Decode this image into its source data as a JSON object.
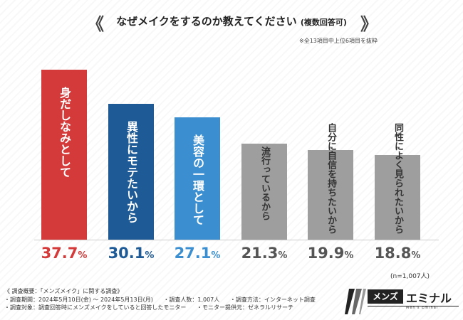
{
  "header": {
    "title": "なぜメイクをするのか教えてください",
    "title_paren": "(複数回答可)",
    "bracket_left": "《",
    "bracket_right": "》",
    "note": "※全13項目中上位6項目を抜粋"
  },
  "chart_data": {
    "type": "bar",
    "title": "なぜメイクをするのか教えてください(複数回答可)",
    "categories": [
      "身だしなみとして",
      "異性にモテたいから",
      "美容の一環として",
      "流行っているから",
      "自分に自信を持ちたいから",
      "同性によく見られたいから"
    ],
    "values": [
      37.7,
      30.1,
      27.1,
      21.3,
      19.9,
      18.8
    ],
    "value_labels": [
      {
        "num": "37.7",
        "pct": "%"
      },
      {
        "num": "30.1",
        "pct": "%"
      },
      {
        "num": "27.1",
        "pct": "%"
      },
      {
        "num": "21.3",
        "pct": "%"
      },
      {
        "num": "19.9",
        "pct": "%"
      },
      {
        "num": "18.8",
        "pct": "%"
      }
    ],
    "colors": [
      "#d43a3a",
      "#1d5a96",
      "#3b8fd0",
      "#9e9e9e",
      "#9e9e9e",
      "#9e9e9e"
    ],
    "label_colors": [
      "#ffffff",
      "#ffffff",
      "#ffffff",
      "#333333",
      "#333333",
      "#333333"
    ],
    "value_colors": [
      "#d43a3a",
      "#1d5a96",
      "#3b8fd0",
      "#555555",
      "#555555",
      "#555555"
    ],
    "ylim": [
      0,
      40
    ],
    "xlabel": "",
    "ylabel": ""
  },
  "sample_note": "(n=1,007人)",
  "footer": {
    "line1": "《 調査概要：「メンズメイク」に関する調査》",
    "line2_a": "・調査期間：2024年5月10日(金) ～ 2024年5月13日(月)",
    "line2_b": "・調査人数：1,007人",
    "line2_c": "・調査方法：インターネット調査",
    "line3_a": "・調査対象：調査回答時にメンズメイクをしていると回答したモニター",
    "line3_b": "・モニター提供元：ゼネラルリサーチ"
  },
  "logo": {
    "box_text": "メンズ",
    "text": "エミナル",
    "sub": "Men's Eminal"
  }
}
